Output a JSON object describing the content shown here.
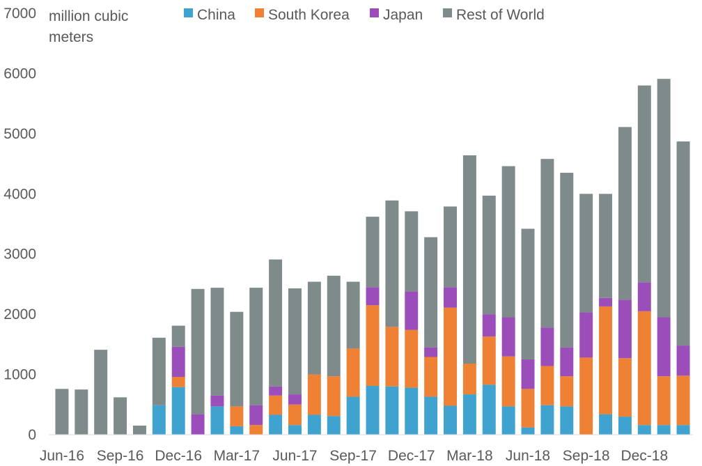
{
  "chart_data": {
    "type": "bar",
    "stacked": true,
    "unit_label": [
      "million cubic",
      "meters"
    ],
    "ylim": [
      0,
      7000
    ],
    "yticks": [
      0,
      1000,
      2000,
      3000,
      4000,
      5000,
      6000,
      7000
    ],
    "grid": false,
    "legend_position": "top",
    "categories": [
      "Jun-16",
      "Jul-16",
      "Aug-16",
      "Sep-16",
      "Oct-16",
      "Nov-16",
      "Dec-16",
      "Jan-17",
      "Feb-17",
      "Mar-17",
      "Apr-17",
      "May-17",
      "Jun-17",
      "Jul-17",
      "Aug-17",
      "Sep-17",
      "Oct-17",
      "Nov-17",
      "Dec-17",
      "Jan-18",
      "Feb-18",
      "Mar-18",
      "Apr-18",
      "May-18",
      "Jun-18",
      "Jul-18",
      "Aug-18",
      "Sep-18",
      "Oct-18",
      "Nov-18",
      "Dec-18",
      "Jan-19",
      "Feb-19"
    ],
    "x_tick_labels": [
      "Jun-16",
      "Sep-16",
      "Dec-16",
      "Mar-17",
      "Jun-17",
      "Sep-17",
      "Dec-17",
      "Mar-18",
      "Jun-18",
      "Sep-18",
      "Dec-18"
    ],
    "series": [
      {
        "name": "China",
        "color": "#3fa2cf",
        "values": [
          0,
          0,
          0,
          0,
          0,
          490,
          790,
          0,
          470,
          140,
          0,
          330,
          160,
          330,
          310,
          630,
          810,
          800,
          780,
          630,
          480,
          670,
          830,
          470,
          120,
          490,
          470,
          0,
          340,
          300,
          160,
          160,
          160
        ]
      },
      {
        "name": "South Korea",
        "color": "#ee8133",
        "values": [
          0,
          0,
          0,
          0,
          0,
          0,
          170,
          0,
          0,
          330,
          160,
          320,
          340,
          670,
          660,
          800,
          1340,
          990,
          960,
          660,
          1630,
          510,
          800,
          830,
          640,
          650,
          500,
          1280,
          1790,
          970,
          1890,
          810,
          820
        ]
      },
      {
        "name": "Japan",
        "color": "#9b4dba",
        "values": [
          0,
          0,
          0,
          0,
          0,
          0,
          500,
          340,
          180,
          0,
          330,
          150,
          170,
          0,
          0,
          0,
          300,
          0,
          640,
          160,
          340,
          0,
          370,
          650,
          490,
          640,
          480,
          750,
          140,
          970,
          480,
          980,
          500
        ]
      },
      {
        "name": "Rest of World",
        "color": "#7f8a8a",
        "values": [
          760,
          750,
          1410,
          620,
          150,
          1120,
          350,
          2080,
          1790,
          1570,
          1950,
          2110,
          1760,
          1540,
          1670,
          1110,
          1170,
          2100,
          1330,
          1830,
          1340,
          3460,
          1970,
          2510,
          2170,
          2800,
          2900,
          1970,
          1730,
          2870,
          3270,
          3960,
          3390
        ]
      }
    ]
  }
}
